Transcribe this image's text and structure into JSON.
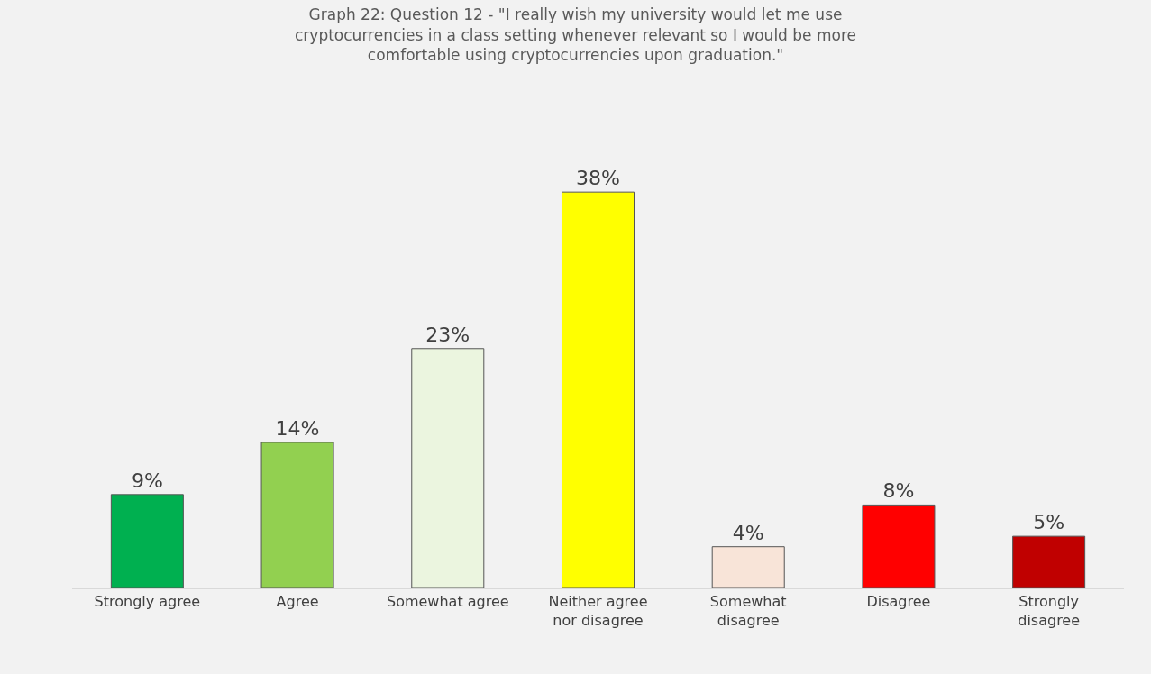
{
  "chart_data": {
    "type": "bar",
    "title": "Graph 22: Question 12 - \"I really wish my university would let me use cryptocurrencies in a class setting whenever relevant so I would be more comfortable using cryptocurrencies upon graduation.\"",
    "categories": [
      "Strongly agree",
      "Agree",
      "Somewhat agree",
      "Neither agree nor disagree",
      "Somewhat disagree",
      "Disagree",
      "Strongly disagree"
    ],
    "values": [
      9,
      14,
      23,
      38,
      4,
      8,
      5
    ],
    "value_labels": [
      "9%",
      "14%",
      "23%",
      "38%",
      "4%",
      "8%",
      "5%"
    ],
    "colors": [
      "#00b050",
      "#92d050",
      "#ebf5df",
      "#ffff00",
      "#f8e4d8",
      "#ff0000",
      "#c00000"
    ]
  }
}
